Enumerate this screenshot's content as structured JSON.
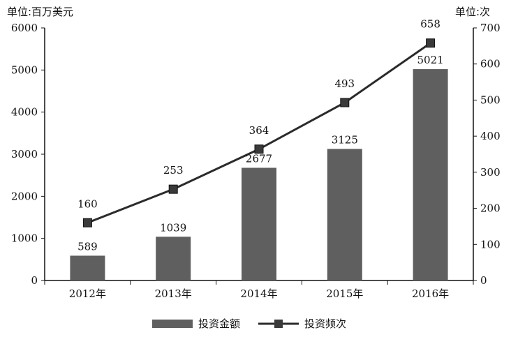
{
  "chart_data": {
    "type": "bar",
    "categories": [
      "2012年",
      "2013年",
      "2014年",
      "2015年",
      "2016年"
    ],
    "series": [
      {
        "name": "投资金额",
        "type": "bar",
        "axis": "left",
        "values": [
          589,
          1039,
          2677,
          3125,
          5021
        ]
      },
      {
        "name": "投资频次",
        "type": "line",
        "axis": "right",
        "values": [
          160,
          253,
          364,
          493,
          658
        ]
      }
    ],
    "left_axis": {
      "unit": "单位:百万美元",
      "ylim": [
        0,
        6000
      ],
      "ticks": [
        "0",
        "1000",
        "2000",
        "3000",
        "4000",
        "5000",
        "6000"
      ]
    },
    "right_axis": {
      "unit": "单位:次",
      "ylim": [
        0,
        700
      ],
      "ticks": [
        "0",
        "100",
        "200",
        "300",
        "400",
        "500",
        "600",
        "700"
      ]
    },
    "grid": false,
    "legend_position": "bottom",
    "colors": {
      "bar": "#5f5f5f",
      "line": "#2b2b2b",
      "marker": "#3a3a3a",
      "axis": "#111111"
    }
  }
}
